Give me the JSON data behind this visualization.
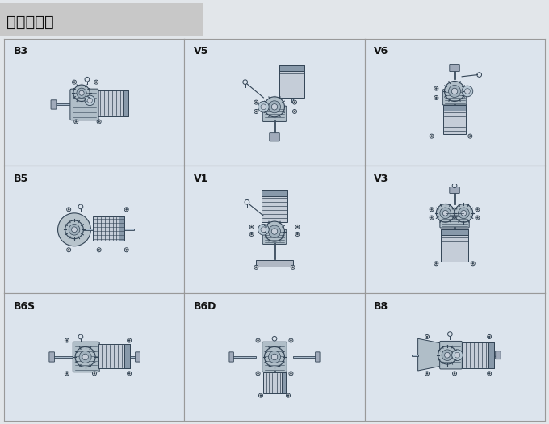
{
  "title": "安裝方位圖",
  "bg_color": "#e2e6ea",
  "cell_bg": "#dce4ed",
  "grid_color": "#999999",
  "text_color": "#111111",
  "title_box_color": "#c8c8c8",
  "cells": [
    {
      "label": "B3",
      "row": 0,
      "col": 0
    },
    {
      "label": "V5",
      "row": 0,
      "col": 1
    },
    {
      "label": "V6",
      "row": 0,
      "col": 2
    },
    {
      "label": "B5",
      "row": 1,
      "col": 0
    },
    {
      "label": "V1",
      "row": 1,
      "col": 1
    },
    {
      "label": "V3",
      "row": 1,
      "col": 2
    },
    {
      "label": "B6S",
      "row": 2,
      "col": 0
    },
    {
      "label": "B6D",
      "row": 2,
      "col": 1
    },
    {
      "label": "B8",
      "row": 2,
      "col": 2
    }
  ],
  "lc": "#334455",
  "mc": "#c5cdd8",
  "gc": "#b0bec8",
  "sc": "#778899"
}
